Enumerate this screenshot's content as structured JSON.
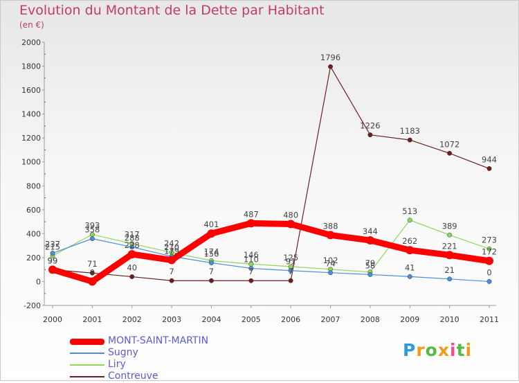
{
  "title": "Evolution du Montant de la Dette par Habitant",
  "unit": "(en €)",
  "logo": {
    "text": "Proxiti",
    "letter_colors": [
      "#2f9cd8",
      "#f29a1a",
      "#56b948",
      "#f29a1a",
      "#ef4d8a",
      "#56b948",
      "#f29a1a"
    ]
  },
  "chart_data": {
    "type": "line",
    "title": "Evolution du Montant de la Dette par Habitant",
    "ylabel": "(en €)",
    "xlabel": "",
    "x": [
      "2000",
      "2001",
      "2002",
      "2003",
      "2004",
      "2005",
      "2006",
      "2007",
      "2008",
      "2009",
      "2010",
      "2011"
    ],
    "ylim": [
      -200,
      2000
    ],
    "yticks": [
      "-200",
      "0",
      "200",
      "400",
      "600",
      "800",
      "1000",
      "1200",
      "1400",
      "1600",
      "1800",
      "2000"
    ],
    "grid": false,
    "legend": "bottom-left",
    "series": [
      {
        "name": "MONT-SAINT-MARTIN",
        "color": "#ff0000",
        "values": [
          99,
          0,
          228,
          179,
          401,
          487,
          480,
          388,
          344,
          262,
          221,
          172
        ],
        "labels": [
          "99",
          "0",
          "228",
          "179",
          "401",
          "487",
          "480",
          "388",
          "344",
          "262",
          "221",
          "172"
        ]
      },
      {
        "name": "Sugny",
        "color": "#4a8fd8",
        "values": [
          237,
          358,
          288,
          210,
          156,
          110,
          91,
          74,
          58,
          41,
          21,
          0
        ],
        "labels": [
          "237",
          "358",
          "288",
          "210",
          "156",
          "110",
          "91",
          "74",
          "58",
          "41",
          "21",
          "0"
        ]
      },
      {
        "name": "Liry",
        "color": "#8fd65a",
        "values": [
          215,
          393,
          317,
          242,
          174,
          146,
          125,
          102,
          79,
          513,
          389,
          273
        ],
        "labels": [
          "215",
          "393",
          "317",
          "242",
          "174",
          "146",
          "125",
          "102",
          "79",
          "513",
          "389",
          "273"
        ]
      },
      {
        "name": "Contreuve",
        "color": "#6e1e1e",
        "values": [
          99,
          71,
          40,
          7,
          7,
          7,
          7,
          1796,
          1226,
          1183,
          1072,
          944
        ],
        "labels": [
          "99",
          "71",
          "40",
          "7",
          "7",
          "7",
          "7",
          "1796",
          "1226",
          "1183",
          "1072",
          "944"
        ]
      }
    ]
  }
}
